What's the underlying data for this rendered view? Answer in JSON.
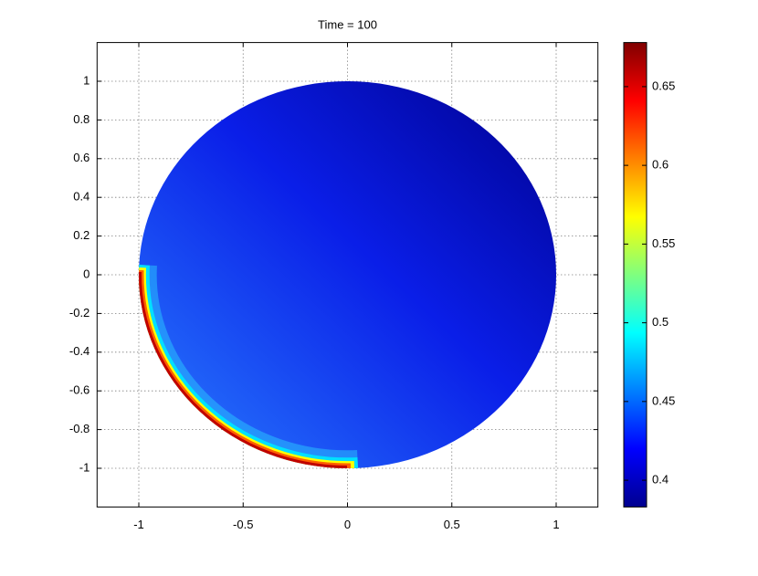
{
  "chart_data": {
    "type": "contour",
    "title": "Time = 100",
    "xlim": [
      -1.2,
      1.2
    ],
    "ylim": [
      -1.2,
      1.2
    ],
    "xticks": [
      -1,
      -0.5,
      0,
      0.5,
      1
    ],
    "yticks": [
      -1,
      -0.8,
      -0.6,
      -0.4,
      -0.2,
      0,
      0.2,
      0.4,
      0.6,
      0.8,
      1
    ],
    "grid": true,
    "colormap": "jet",
    "clim": [
      0.383,
      0.678
    ],
    "colorbar_ticks": [
      0.4,
      0.45,
      0.5,
      0.55,
      0.6,
      0.65
    ]
  }
}
